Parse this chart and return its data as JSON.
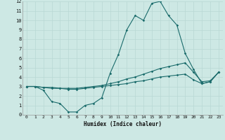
{
  "xlabel": "Humidex (Indice chaleur)",
  "bg_color": "#cde8e4",
  "line_color": "#1a6b6b",
  "grid_color": "#b8d8d4",
  "xlim_min": -0.5,
  "xlim_max": 23.5,
  "ylim_min": 0,
  "ylim_max": 12,
  "xticks": [
    0,
    1,
    2,
    3,
    4,
    5,
    6,
    7,
    8,
    9,
    10,
    11,
    12,
    13,
    14,
    15,
    16,
    17,
    18,
    19,
    20,
    21,
    22,
    23
  ],
  "yticks": [
    0,
    1,
    2,
    3,
    4,
    5,
    6,
    7,
    8,
    9,
    10,
    11,
    12
  ],
  "x": [
    0,
    1,
    2,
    3,
    4,
    5,
    6,
    7,
    8,
    9,
    10,
    11,
    12,
    13,
    14,
    15,
    16,
    17,
    18,
    19,
    20,
    21,
    22,
    23
  ],
  "y_top": [
    3.0,
    3.0,
    2.6,
    1.4,
    1.2,
    0.3,
    0.3,
    1.0,
    1.2,
    1.8,
    4.4,
    6.4,
    9.0,
    10.5,
    10.0,
    11.8,
    12.0,
    10.5,
    9.5,
    6.5,
    4.8,
    3.3,
    3.5,
    4.5
  ],
  "y_mid": [
    3.0,
    3.0,
    2.9,
    2.9,
    2.8,
    2.8,
    2.8,
    2.9,
    3.0,
    3.1,
    3.3,
    3.5,
    3.8,
    4.0,
    4.3,
    4.6,
    4.9,
    5.1,
    5.3,
    5.5,
    4.5,
    3.5,
    3.6,
    4.5
  ],
  "y_bot": [
    3.0,
    3.0,
    2.9,
    2.8,
    2.8,
    2.7,
    2.7,
    2.8,
    2.9,
    3.0,
    3.1,
    3.2,
    3.3,
    3.5,
    3.6,
    3.8,
    4.0,
    4.1,
    4.2,
    4.3,
    3.7,
    3.3,
    3.5,
    4.5
  ]
}
